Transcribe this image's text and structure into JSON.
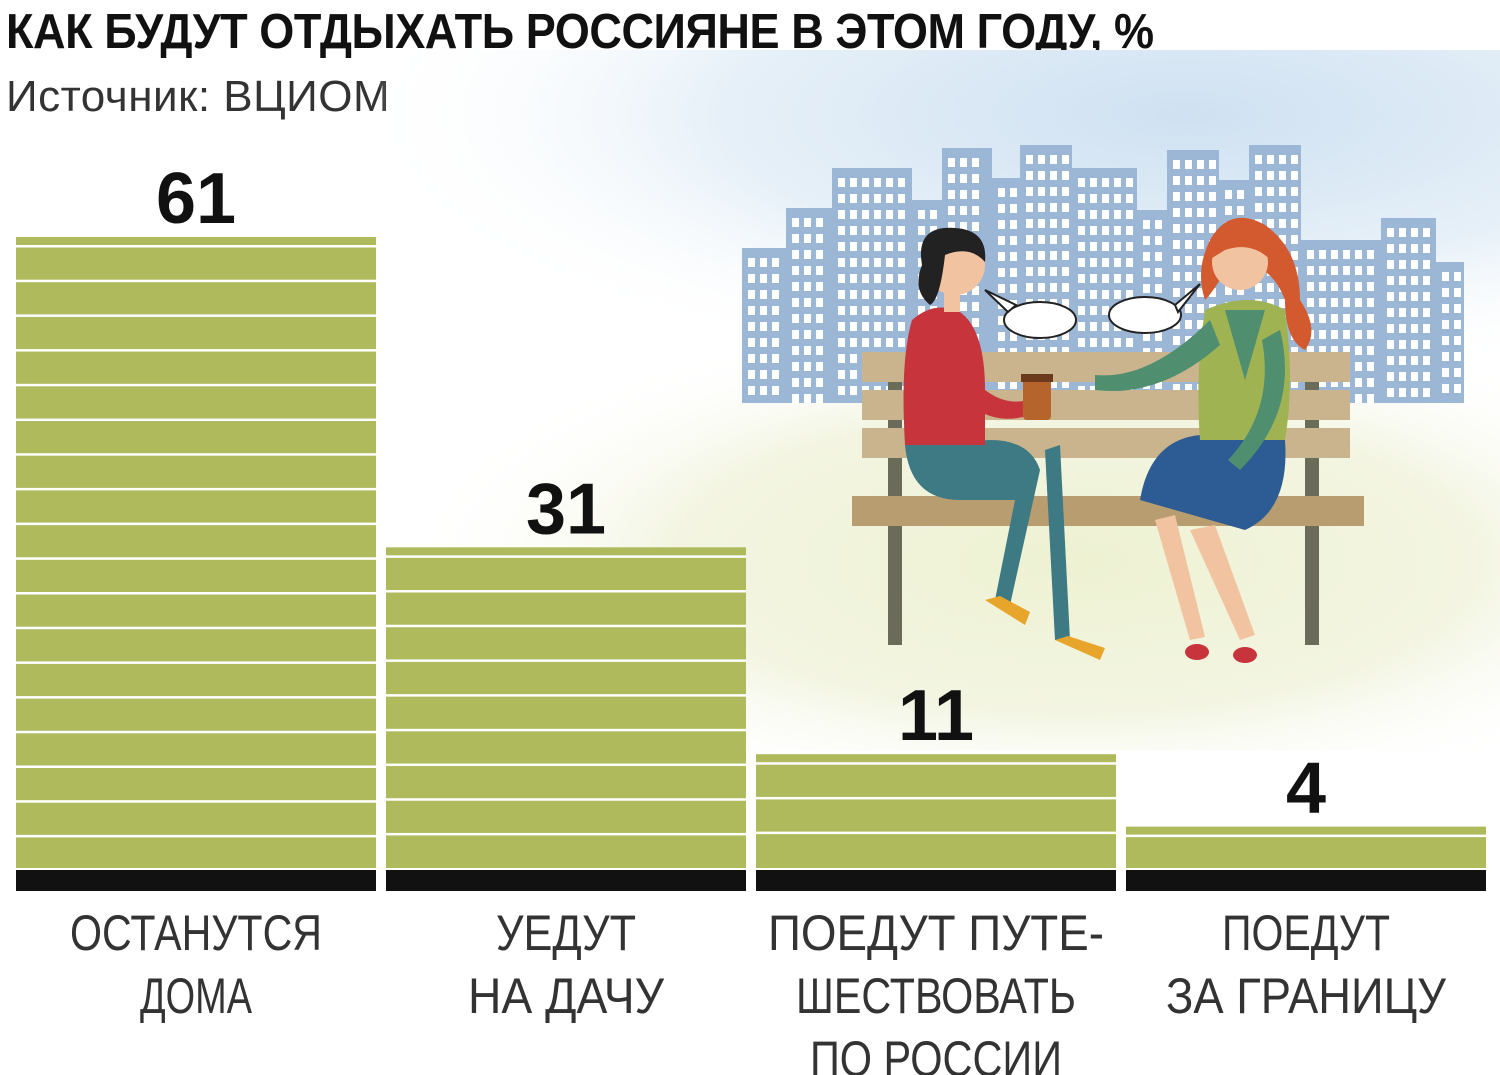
{
  "chart_data": {
    "type": "bar",
    "title": "КАК БУДУТ ОТДЫХАТЬ РОССИЯНЕ В ЭТОМ ГОДУ, %",
    "subtitle": "Источник: ВЦИОМ",
    "unit": "%",
    "categories": [
      [
        "ОСТАНУТСЯ",
        "ДОМА"
      ],
      [
        "УЕДУТ",
        "НА ДАЧУ"
      ],
      [
        "ПОЕДУТ ПУТЕ-",
        "ШЕСТВОВАТЬ",
        "ПО РОССИИ"
      ],
      [
        "ПОЕДУТ",
        "ЗА ГРАНИЦУ"
      ]
    ],
    "values": [
      61,
      31,
      11,
      4
    ],
    "value_labels": [
      "61",
      "31",
      "11",
      "4"
    ],
    "ylim": [
      0,
      61
    ],
    "grid": false,
    "legend": "none",
    "colors": {
      "bar_fill": "#aeba5c",
      "bar_stripe": "#ffffff",
      "baseline": "#111111",
      "text": "#111111",
      "label_text": "#333333"
    }
  }
}
